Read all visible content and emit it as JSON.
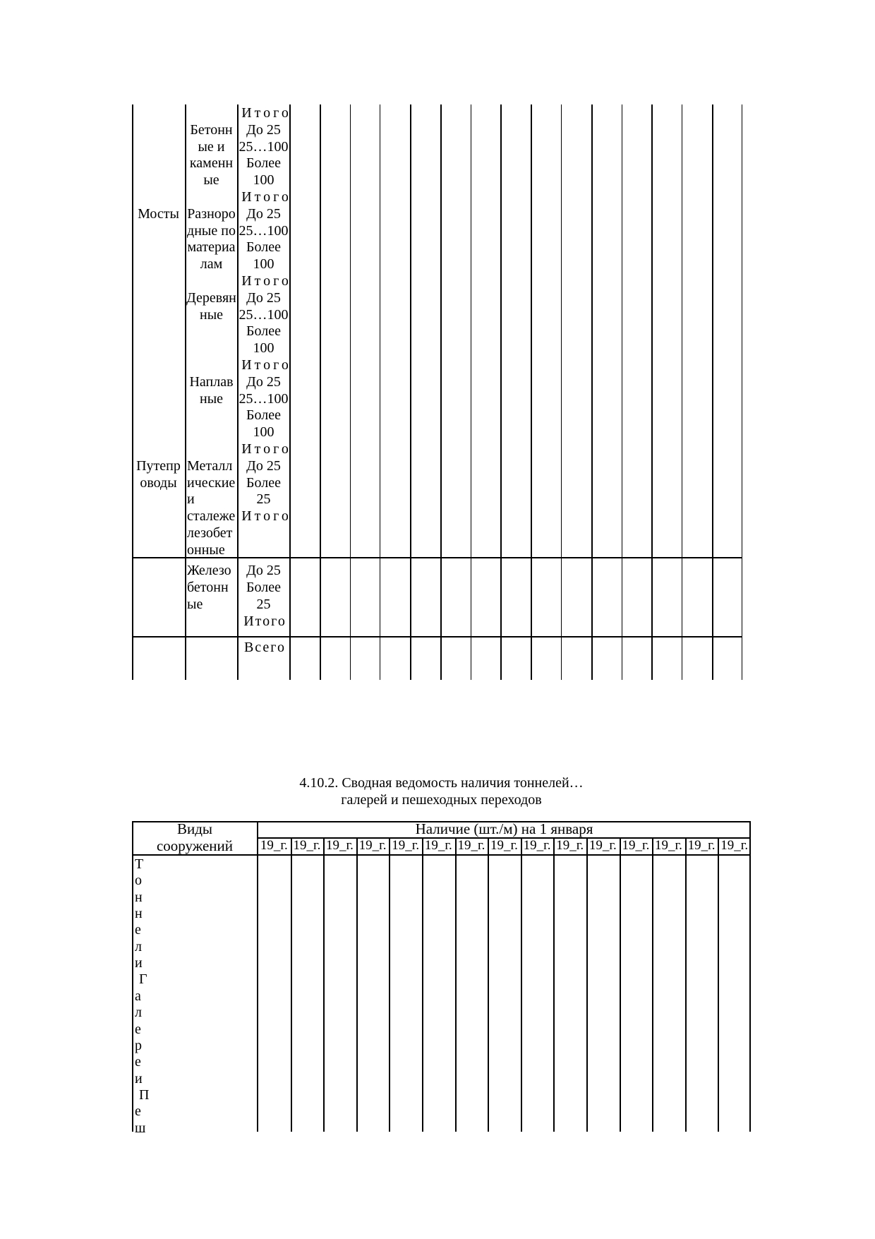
{
  "document_title": {
    "line1": "4.10.2. Сводная ведомость наличия тоннелей…",
    "line2": "галерей и пешеходных переходов"
  },
  "table1": {
    "categories": {
      "bridges": "Мосты",
      "overpasses_line1": "Путепр",
      "overpasses_line2": "оводы"
    },
    "carryover_total_label": "Итого",
    "groups": [
      {
        "material_lines": [
          "Бетонн",
          "ые и",
          "каменн",
          "ые"
        ],
        "span_rows": [
          "До 25",
          "25…100",
          "Более",
          "100"
        ],
        "total_label": "Итого"
      },
      {
        "material_lines": [
          "Разноро",
          "дные по",
          "материа",
          "лам"
        ],
        "span_rows": [
          "До 25",
          "25…100",
          "Более",
          "100"
        ],
        "total_label": "Итого"
      },
      {
        "material_lines": [
          "Деревян",
          "ные"
        ],
        "span_rows": [
          "До 25",
          "25…100",
          "Более",
          "100"
        ],
        "total_label": "Итого"
      },
      {
        "material_lines": [
          "Наплав",
          "ные"
        ],
        "span_rows": [
          "До 25",
          "25…100",
          "Более",
          "100"
        ],
        "total_label": "Итого"
      },
      {
        "material_lines": [
          "Металл",
          "ические",
          "и",
          "сталеже",
          "лезобет",
          "онные"
        ],
        "span_rows": [
          "До 25",
          "Более",
          "25"
        ],
        "total_label": "Итого"
      },
      {
        "material_lines": [
          "Железо",
          "бетонн",
          "ые"
        ],
        "span_rows": [
          "До 25",
          "Более",
          "25"
        ],
        "total_label": "Итого"
      }
    ],
    "grand_total_label": "Всего"
  },
  "table2": {
    "header": {
      "col1_line1": "Виды",
      "col1_line2": "сооружений",
      "availability": "Наличие (шт./м) на 1 января",
      "year_label": "19_г."
    },
    "year_column_count": 15,
    "vertical_label_letters": [
      "Т",
      "о",
      "н",
      "н",
      "е",
      "л",
      "и",
      "Г",
      "а",
      "л",
      "е",
      "р",
      "е",
      "и",
      "П",
      "е",
      "ш"
    ]
  }
}
